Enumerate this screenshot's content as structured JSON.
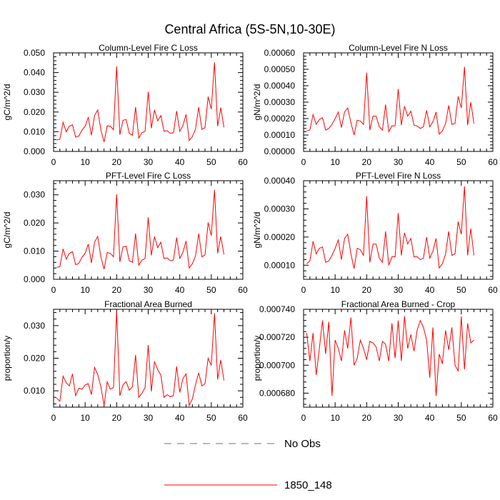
{
  "page": {
    "title": "Central Africa (5S-5N,10-30E)"
  },
  "chart_data": [
    {
      "type": "line",
      "title": "Column-Level Fire C Loss",
      "xlabel": "",
      "ylabel": "gC/m^2/d",
      "xlim": [
        0,
        60
      ],
      "ylim": [
        0,
        0.05
      ],
      "xticks": [
        0,
        10,
        20,
        30,
        40,
        50,
        60
      ],
      "xticklabels": [
        "0",
        "10",
        "20",
        "30",
        "40",
        "50",
        "60"
      ],
      "yticks": [
        0,
        0.01,
        0.02,
        0.03,
        0.04,
        0.05
      ],
      "yticklabels": [
        "0.000",
        "0.010",
        "0.020",
        "0.030",
        "0.040",
        "0.050"
      ],
      "series": [
        {
          "name": "1850_148",
          "color": "#ff0000",
          "x": [
            1,
            2,
            3,
            4,
            5,
            6,
            7,
            8,
            9,
            10,
            11,
            12,
            13,
            14,
            15,
            16,
            17,
            18,
            19,
            20,
            21,
            22,
            23,
            24,
            25,
            26,
            27,
            28,
            29,
            30,
            31,
            32,
            33,
            34,
            35,
            36,
            37,
            38,
            39,
            40,
            41,
            42,
            43,
            44,
            45,
            46,
            47,
            48,
            49,
            50,
            51,
            52,
            53,
            54
          ],
          "y": [
            0.0058,
            0.0062,
            0.0148,
            0.01,
            0.0128,
            0.0135,
            0.0072,
            0.0078,
            0.0108,
            0.0128,
            0.0172,
            0.0082,
            0.0182,
            0.021,
            0.0108,
            0.0048,
            0.013,
            0.0128,
            0.011,
            0.0432,
            0.0085,
            0.0158,
            0.0162,
            0.0092,
            0.0082,
            0.0225,
            0.0068,
            0.0095,
            0.0102,
            0.0302,
            0.0118,
            0.021,
            0.0155,
            0.0182,
            0.0102,
            0.0105,
            0.0092,
            0.0095,
            0.0205,
            0.0102,
            0.0132,
            0.0188,
            0.0055,
            0.0075,
            0.0115,
            0.0225,
            0.0112,
            0.012,
            0.0278,
            0.0215,
            0.0452,
            0.0128,
            0.0222,
            0.0122
          ]
        }
      ]
    },
    {
      "type": "line",
      "title": "Column-Level Fire N Loss",
      "xlabel": "",
      "ylabel": "gN/m^2/d",
      "xlim": [
        0,
        60
      ],
      "ylim": [
        0,
        0.0006
      ],
      "xticks": [
        0,
        10,
        20,
        30,
        40,
        50,
        60
      ],
      "xticklabels": [
        "0",
        "10",
        "20",
        "30",
        "40",
        "50",
        "60"
      ],
      "yticks": [
        0,
        0.0001,
        0.0002,
        0.0003,
        0.0004,
        0.0005,
        0.0006
      ],
      "yticklabels": [
        "0.00000",
        "0.00010",
        "0.00020",
        "0.00030",
        "0.00040",
        "0.00050",
        "0.00060"
      ],
      "series": [
        {
          "name": "1850_148",
          "color": "#ff0000",
          "x": [
            1,
            2,
            3,
            4,
            5,
            6,
            7,
            8,
            9,
            10,
            11,
            12,
            13,
            14,
            15,
            16,
            17,
            18,
            19,
            20,
            21,
            22,
            23,
            24,
            25,
            26,
            27,
            28,
            29,
            30,
            31,
            32,
            33,
            34,
            35,
            36,
            37,
            38,
            39,
            40,
            41,
            42,
            43,
            44,
            45,
            46,
            47,
            48,
            49,
            50,
            51,
            52,
            53,
            54
          ],
          "y": [
            0.000125,
            0.00013,
            0.000225,
            0.000165,
            0.000195,
            0.000205,
            0.00013,
            0.00014,
            0.000165,
            0.0002,
            0.00024,
            0.000145,
            0.00024,
            0.000265,
            0.000175,
            0.0001,
            0.00019,
            0.000185,
            0.000165,
            0.00048,
            0.00013,
            0.000215,
            0.000215,
            0.00015,
            0.00013,
            0.000285,
            0.00012,
            0.000155,
            0.000155,
            0.00038,
            0.00016,
            0.000275,
            0.000215,
            0.000245,
            0.00016,
            0.000155,
            0.00014,
            0.00015,
            0.00025,
            0.00015,
            0.00018,
            0.00024,
            0.000105,
            0.000125,
            0.00017,
            0.00028,
            0.000165,
            0.00017,
            0.000335,
            0.000265,
            0.000515,
            0.00016,
            0.0003,
            0.00017
          ]
        }
      ]
    },
    {
      "type": "line",
      "title": "PFT-Level Fire C Loss",
      "xlabel": "",
      "ylabel": "gC/m^2/d",
      "xlim": [
        0,
        60
      ],
      "ylim": [
        0,
        0.035
      ],
      "xticks": [
        0,
        10,
        20,
        30,
        40,
        50,
        60
      ],
      "xticklabels": [
        "0",
        "10",
        "20",
        "30",
        "40",
        "50",
        "60"
      ],
      "yticks": [
        0,
        0.01,
        0.02,
        0.03
      ],
      "yticklabels": [
        "0.000",
        "0.010",
        "0.020",
        "0.030"
      ],
      "series": [
        {
          "name": "1850_148",
          "color": "#ff0000",
          "x": [
            1,
            2,
            3,
            4,
            5,
            6,
            7,
            8,
            9,
            10,
            11,
            12,
            13,
            14,
            15,
            16,
            17,
            18,
            19,
            20,
            21,
            22,
            23,
            24,
            25,
            26,
            27,
            28,
            29,
            30,
            31,
            32,
            33,
            34,
            35,
            36,
            37,
            38,
            39,
            40,
            41,
            42,
            43,
            44,
            45,
            46,
            47,
            48,
            49,
            50,
            51,
            52,
            53,
            54
          ],
          "y": [
            0.0042,
            0.0045,
            0.0108,
            0.0072,
            0.0092,
            0.0098,
            0.0052,
            0.0056,
            0.0078,
            0.0092,
            0.0125,
            0.0058,
            0.0132,
            0.0152,
            0.0078,
            0.0036,
            0.0095,
            0.0092,
            0.008,
            0.0302,
            0.0062,
            0.0115,
            0.0118,
            0.0066,
            0.006,
            0.0162,
            0.005,
            0.0068,
            0.0074,
            0.022,
            0.0085,
            0.0152,
            0.0112,
            0.0132,
            0.0074,
            0.0076,
            0.0066,
            0.0068,
            0.0148,
            0.0074,
            0.0096,
            0.0136,
            0.004,
            0.0055,
            0.0084,
            0.0162,
            0.008,
            0.0086,
            0.0202,
            0.0155,
            0.0318,
            0.0092,
            0.0152,
            0.0088
          ]
        }
      ]
    },
    {
      "type": "line",
      "title": "PFT-Level Fire N Loss",
      "xlabel": "",
      "ylabel": "gN/m^2/d",
      "xlim": [
        0,
        60
      ],
      "ylim": [
        5e-05,
        0.0004
      ],
      "xticks": [
        0,
        10,
        20,
        30,
        40,
        50,
        60
      ],
      "xticklabels": [
        "0",
        "10",
        "20",
        "30",
        "40",
        "50",
        "60"
      ],
      "yticks": [
        0.0001,
        0.0002,
        0.0003,
        0.0004
      ],
      "yticklabels": [
        "0.00010",
        "0.00020",
        "0.00030",
        "0.00040"
      ],
      "series": [
        {
          "name": "1850_148",
          "color": "#ff0000",
          "x": [
            1,
            2,
            3,
            4,
            5,
            6,
            7,
            8,
            9,
            10,
            11,
            12,
            13,
            14,
            15,
            16,
            17,
            18,
            19,
            20,
            21,
            22,
            23,
            24,
            25,
            26,
            27,
            28,
            29,
            30,
            31,
            32,
            33,
            34,
            35,
            36,
            37,
            38,
            39,
            40,
            41,
            42,
            43,
            44,
            45,
            46,
            47,
            48,
            49,
            50,
            51,
            52,
            53,
            54
          ],
          "y": [
            0.000105,
            0.000115,
            0.000185,
            0.00014,
            0.00016,
            0.000165,
            0.00011,
            0.000115,
            0.000135,
            0.00016,
            0.00019,
            0.00012,
            0.000195,
            0.00021,
            0.00014,
            8.8e-05,
            0.00016,
            0.000155,
            0.000135,
            0.000345,
            0.00011,
            0.000175,
            0.000175,
            0.000125,
            0.00011,
            0.00022,
            0.0001,
            0.00013,
            0.00013,
            0.000285,
            0.000135,
            0.000215,
            0.000175,
            0.000195,
            0.00013,
            0.00013,
            0.00012,
            0.000125,
            0.0002,
            0.000125,
            0.00015,
            0.000195,
            9e-05,
            0.000105,
            0.00014,
            0.00022,
            0.000135,
            0.00014,
            0.000255,
            0.00021,
            0.00038,
            0.000135,
            0.00023,
            0.000135
          ]
        }
      ]
    },
    {
      "type": "line",
      "title": "Fractional Area Burned",
      "xlabel": "",
      "ylabel": "proportion/y",
      "xlim": [
        0,
        60
      ],
      "ylim": [
        0.005,
        0.035
      ],
      "xticks": [
        0,
        10,
        20,
        30,
        40,
        50,
        60
      ],
      "xticklabels": [
        "0",
        "10",
        "20",
        "30",
        "40",
        "50",
        "60"
      ],
      "yticks": [
        0.01,
        0.02,
        0.03
      ],
      "yticklabels": [
        "0.010",
        "0.020",
        "0.030"
      ],
      "series": [
        {
          "name": "1850_148",
          "color": "#ff0000",
          "x": [
            1,
            2,
            3,
            4,
            5,
            6,
            7,
            8,
            9,
            10,
            11,
            12,
            13,
            14,
            15,
            16,
            17,
            18,
            19,
            20,
            21,
            22,
            23,
            24,
            25,
            26,
            27,
            28,
            29,
            30,
            31,
            32,
            33,
            34,
            35,
            36,
            37,
            38,
            39,
            40,
            41,
            42,
            43,
            44,
            45,
            46,
            47,
            48,
            49,
            50,
            51,
            52,
            53,
            54
          ],
          "y": [
            0.0078,
            0.0068,
            0.0145,
            0.0125,
            0.0115,
            0.0152,
            0.0085,
            0.0108,
            0.0105,
            0.0118,
            0.0122,
            0.0088,
            0.0172,
            0.015,
            0.0112,
            0.0055,
            0.0128,
            0.0105,
            0.011,
            0.0345,
            0.0085,
            0.0118,
            0.0128,
            0.0102,
            0.0112,
            0.021,
            0.008,
            0.0092,
            0.011,
            0.024,
            0.0098,
            0.019,
            0.0165,
            0.0148,
            0.008,
            0.0088,
            0.0082,
            0.0085,
            0.0175,
            0.0095,
            0.0138,
            0.0152,
            0.0055,
            0.0075,
            0.012,
            0.0155,
            0.0115,
            0.0122,
            0.02,
            0.0178,
            0.0338,
            0.0135,
            0.0195,
            0.0132
          ]
        }
      ]
    },
    {
      "type": "line",
      "title": "Fractional Area Burned - Crop",
      "xlabel": "",
      "ylabel": "proportion/y",
      "xlim": [
        0,
        60
      ],
      "ylim": [
        0.00067,
        0.00074
      ],
      "xticks": [
        0,
        10,
        20,
        30,
        40,
        50,
        60
      ],
      "xticklabels": [
        "0",
        "10",
        "20",
        "30",
        "40",
        "50",
        "60"
      ],
      "yticks": [
        0.00068,
        0.0007,
        0.00072,
        0.00074
      ],
      "yticklabels": [
        "0.000680",
        "0.000700",
        "0.000720",
        "0.000740"
      ],
      "series": [
        {
          "name": "1850_148",
          "color": "#ff0000",
          "x": [
            1,
            2,
            3,
            4,
            5,
            6,
            7,
            8,
            9,
            10,
            11,
            12,
            13,
            14,
            15,
            16,
            17,
            18,
            19,
            20,
            21,
            22,
            23,
            24,
            25,
            26,
            27,
            28,
            29,
            30,
            31,
            32,
            33,
            34,
            35,
            36,
            37,
            38,
            39,
            40,
            41,
            42,
            43,
            44,
            45,
            46,
            47,
            48,
            49,
            50,
            51,
            52,
            53,
            54
          ],
          "y": [
            0.000723,
            0.000703,
            0.000723,
            0.000693,
            0.000712,
            0.000732,
            0.000708,
            0.000731,
            0.000678,
            0.000718,
            0.000712,
            0.000703,
            0.000725,
            0.000712,
            0.000734,
            0.0007,
            0.000705,
            0.000718,
            0.000712,
            0.000704,
            0.000717,
            0.000716,
            0.000713,
            0.000703,
            0.000717,
            0.000715,
            0.000703,
            0.00073,
            0.000705,
            0.000732,
            0.000703,
            0.000735,
            0.000712,
            0.000722,
            0.00071,
            0.000725,
            0.000732,
            0.000727,
            0.000718,
            0.000691,
            0.000727,
            0.000678,
            0.000708,
            0.000701,
            0.000725,
            0.000711,
            0.000727,
            0.0007,
            0.000696,
            0.000735,
            0.000697,
            0.00073,
            0.000716,
            0.000718
          ]
        }
      ]
    }
  ],
  "legend": {
    "items": [
      {
        "label": "No Obs",
        "color": "#6666cc",
        "style": "dashed"
      },
      {
        "label": "1850_148",
        "color": "#ff0000",
        "style": "solid"
      }
    ]
  }
}
